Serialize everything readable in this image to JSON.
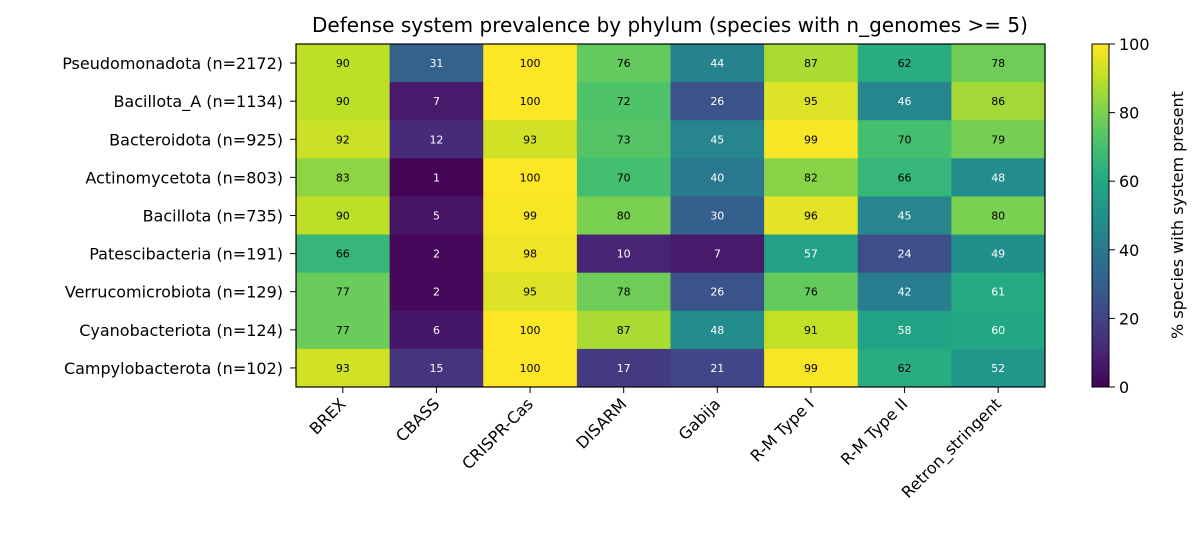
{
  "chart_data": {
    "type": "heatmap",
    "title": "Defense system prevalence by phylum (species with n_genomes >= 5)",
    "xlabel": "",
    "ylabel": "",
    "x_categories": [
      "BREX",
      "CBASS",
      "CRISPR-Cas",
      "DISARM",
      "Gabija",
      "R-M Type I",
      "R-M Type II",
      "Retron_stringent"
    ],
    "y_categories": [
      "Pseudomonadota (n=2172)",
      "Bacillota_A (n=1134)",
      "Bacteroidota (n=925)",
      "Actinomycetota (n=803)",
      "Bacillota (n=735)",
      "Patescibacteria (n=191)",
      "Verrucomicrobiota (n=129)",
      "Cyanobacteriota (n=124)",
      "Campylobacterota (n=102)"
    ],
    "values": [
      [
        90,
        31,
        100,
        76,
        44,
        87,
        62,
        78
      ],
      [
        90,
        7,
        100,
        72,
        26,
        95,
        46,
        86
      ],
      [
        92,
        12,
        93,
        73,
        45,
        99,
        70,
        79
      ],
      [
        83,
        1,
        100,
        70,
        40,
        82,
        66,
        48
      ],
      [
        90,
        5,
        99,
        80,
        30,
        96,
        45,
        80
      ],
      [
        66,
        2,
        98,
        10,
        7,
        57,
        24,
        49
      ],
      [
        77,
        2,
        95,
        78,
        26,
        76,
        42,
        61
      ],
      [
        77,
        6,
        100,
        87,
        48,
        91,
        58,
        60
      ],
      [
        93,
        15,
        100,
        17,
        21,
        99,
        62,
        52
      ]
    ],
    "colorbar": {
      "label": "% species with system present",
      "range": [
        0,
        100
      ],
      "ticks": [
        "0",
        "20",
        "40",
        "60",
        "80",
        "100"
      ],
      "colormap": "viridis"
    },
    "grid": false,
    "annotations": "cell values printed in each cell"
  }
}
